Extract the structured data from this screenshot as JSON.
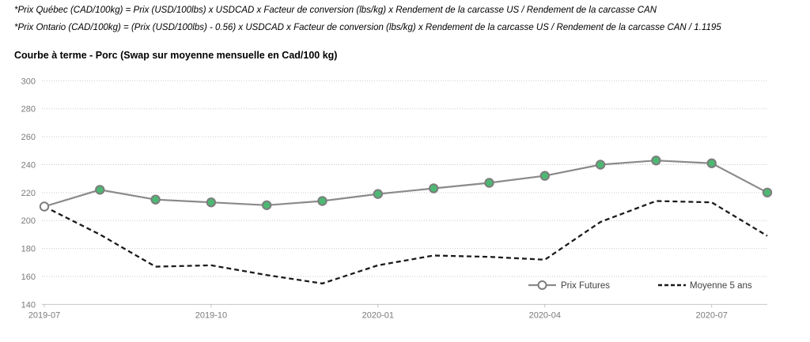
{
  "header": {
    "formula_quebec": "*Prix Québec (CAD/100kg) = Prix (USD/100lbs) x USDCAD x Facteur de conversion (lbs/kg) x Rendement de la carcasse US / Rendement de la carcasse CAN",
    "formula_ontario": "*Prix Ontario (CAD/100kg) = (Prix (USD/100lbs) - 0.56) x USDCAD x Facteur de conversion (lbs/kg) x Rendement de la carcasse US / Rendement de la carcasse CAN / 1.1195"
  },
  "chart_data": {
    "type": "line",
    "title": "Courbe à terme - Porc (Swap sur moyenne mensuelle en Cad/100 kg)",
    "x": [
      "2019-07",
      "2019-08",
      "2019-09",
      "2019-10",
      "2019-11",
      "2019-12",
      "2020-01",
      "2020-02",
      "2020-03",
      "2020-04",
      "2020-05",
      "2020-06",
      "2020-07",
      "2020-08"
    ],
    "x_axis_tick_labels": [
      "2019-07",
      "2019-10",
      "2020-01",
      "2020-04",
      "2020-07"
    ],
    "y_ticks": [
      140,
      160,
      180,
      200,
      220,
      240,
      260,
      280,
      300
    ],
    "ylim": [
      140,
      300
    ],
    "grid": true,
    "legend_position": "inside-bottom-right",
    "series": [
      {
        "name": "Prix Futures",
        "line_style": "solid",
        "line_color": "#8a8a8a",
        "marker": "circle",
        "marker_fill": "#4db872",
        "first_marker_fill": "#ffffff",
        "marker_stroke": "#7d7d7d",
        "values": [
          210,
          222,
          215,
          213,
          211,
          214,
          219,
          223,
          227,
          232,
          240,
          243,
          241,
          220
        ]
      },
      {
        "name": "Moyenne 5 ans",
        "line_style": "dashed",
        "line_color": "#1a1a1a",
        "marker": "none",
        "values": [
          210,
          190,
          167,
          168,
          161,
          155,
          168,
          175,
          174,
          172,
          199,
          214,
          213,
          189
        ]
      }
    ],
    "axis_label_color": "#7a7a7a",
    "legend_text_color": "#3f3f3f",
    "gridline_color": "#c9c9c9",
    "axis_line_color": "#c4c4c4"
  }
}
